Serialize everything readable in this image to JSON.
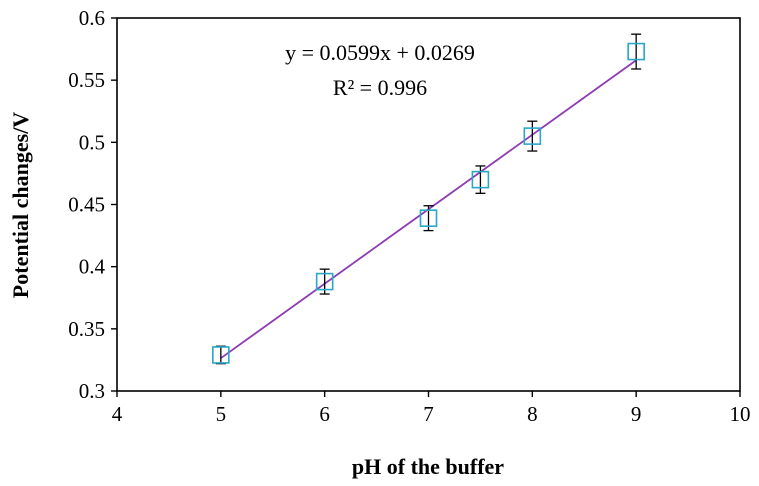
{
  "chart_data": {
    "type": "scatter",
    "title": "",
    "xlabel": "pH of the buffer",
    "ylabel": "Potential changes/V",
    "xlim": [
      4,
      10
    ],
    "ylim": [
      0.3,
      0.6
    ],
    "x_ticks": [
      4,
      5,
      6,
      7,
      8,
      9,
      10
    ],
    "y_ticks": [
      0.3,
      0.35,
      0.4,
      0.45,
      0.5,
      0.55,
      0.6
    ],
    "y_tick_labels": [
      "0.3",
      "0.35",
      "0.4",
      "0.45",
      "0.5",
      "0.55",
      "0.6"
    ],
    "grid": false,
    "legend": "none",
    "series": [
      {
        "x": [
          5,
          6,
          7,
          7.5,
          8,
          9
        ],
        "y": [
          0.329,
          0.388,
          0.439,
          0.47,
          0.505,
          0.573
        ],
        "error": [
          0.007,
          0.01,
          0.01,
          0.011,
          0.012,
          0.014
        ],
        "marker": "open-square",
        "color": "#2aa6c8",
        "error_bar_color": "#000000"
      }
    ],
    "trendline": {
      "type": "linear",
      "slope": 0.0599,
      "intercept": 0.0269,
      "x_range": [
        5,
        9
      ],
      "color": "#8e3bb5",
      "equation_text": "y = 0.0599x  + 0.0269",
      "r2_text": "R² = 0.996"
    }
  }
}
